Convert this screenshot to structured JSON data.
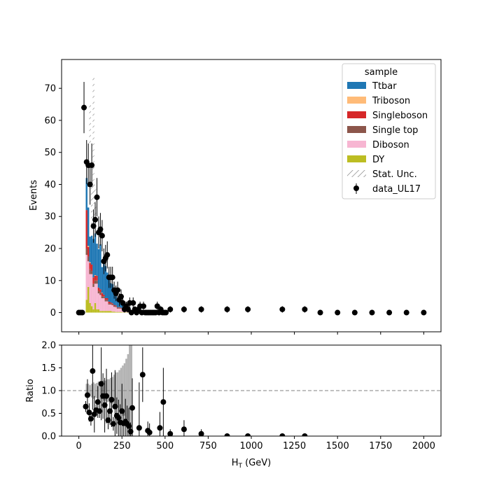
{
  "chart_data": [
    {
      "type": "bar",
      "panel": "main",
      "stacked": true,
      "ylabel": "Events",
      "xlim": [
        -100,
        2100
      ],
      "ylim": [
        -6,
        79
      ],
      "yticks": [
        0,
        10,
        20,
        30,
        40,
        50,
        60,
        70
      ],
      "bin_width": 10,
      "x": [
        40,
        50,
        60,
        70,
        80,
        90,
        100,
        110,
        120,
        130,
        140,
        150,
        160,
        170,
        180,
        190,
        200,
        210,
        220,
        230,
        240,
        250,
        260,
        270,
        280,
        290,
        300,
        310
      ],
      "series": [
        {
          "name": "DY",
          "color": "#bcbd22",
          "values": [
            4,
            8,
            3,
            2,
            1,
            3,
            1,
            1,
            0.5,
            0.5,
            0.5,
            0.5,
            0.5,
            0.5,
            0.5,
            0.3,
            0.3,
            0.2,
            0.2,
            0.2,
            0.2,
            0.1,
            0.1,
            0.1,
            0.1,
            0,
            0,
            0
          ]
        },
        {
          "name": "Diboson",
          "color": "#f7b6d2",
          "values": [
            14,
            8,
            9,
            10,
            7,
            6,
            8,
            5,
            5,
            4,
            4,
            3,
            3,
            2,
            2,
            2,
            1.5,
            1.5,
            1,
            1,
            1,
            1,
            0.5,
            0.5,
            0.5,
            0.5,
            0.3,
            0.3
          ]
        },
        {
          "name": "Single top",
          "color": "#8c564b",
          "values": [
            2,
            1.5,
            1.5,
            1,
            1,
            1,
            1,
            0.8,
            0.8,
            0.6,
            0.6,
            0.5,
            0.5,
            0.4,
            0.4,
            0.3,
            0.3,
            0.3,
            0.2,
            0.2,
            0.2,
            0.1,
            0.1,
            0.1,
            0.1,
            0.1,
            0,
            0
          ]
        },
        {
          "name": "Singleboson",
          "color": "#d62728",
          "values": [
            12,
            3,
            2,
            2,
            2,
            1.5,
            1.5,
            1,
            1,
            1,
            0.5,
            0.5,
            0.5,
            0.5,
            0.3,
            0.3,
            0.3,
            0.2,
            0.2,
            0.2,
            0.1,
            0.1,
            0.1,
            0.1,
            0,
            0,
            0,
            0
          ]
        },
        {
          "name": "Triboson",
          "color": "#ffbb78",
          "values": [
            0,
            0.3,
            0.2,
            0,
            0,
            0.2,
            0,
            0,
            0,
            0.1,
            0,
            0,
            0,
            0,
            0,
            0,
            0,
            0,
            0,
            0,
            0,
            0,
            0,
            0,
            0,
            0,
            0,
            0
          ]
        },
        {
          "name": "Ttbar",
          "color": "#1f77b4",
          "values": [
            10,
            12,
            8,
            9,
            12,
            13,
            10,
            12,
            14,
            8,
            11,
            10,
            8,
            7,
            6,
            6,
            4,
            4,
            3,
            3,
            2,
            2,
            1.5,
            1.5,
            1,
            1,
            0.5,
            0.5
          ]
        }
      ],
      "stat_unc": {
        "name": "Stat. Unc.",
        "x": [
          60,
          70,
          80,
          90
        ],
        "low": [
          52,
          26,
          34,
          26
        ],
        "high": [
          65,
          40,
          74,
          40
        ]
      },
      "data": {
        "name": "data_UL17",
        "x": [
          0,
          10,
          20,
          30,
          40,
          50,
          60,
          70,
          80,
          90,
          100,
          110,
          120,
          130,
          140,
          150,
          160,
          170,
          180,
          190,
          200,
          210,
          220,
          230,
          240,
          250,
          260,
          270,
          280,
          290,
          300,
          310,
          320,
          330,
          340,
          350,
          360,
          370,
          380,
          390,
          400,
          410,
          420,
          430,
          440,
          450,
          460,
          470,
          480,
          490,
          500,
          530,
          610,
          710,
          860,
          980,
          1180,
          1310,
          1400,
          1500,
          1600,
          1700,
          1800,
          1900,
          2000
        ],
        "y": [
          0,
          0,
          0,
          64,
          47,
          46,
          40,
          46,
          27,
          29,
          36,
          25,
          26,
          24,
          16,
          17,
          18,
          11,
          11,
          11,
          7,
          6,
          7,
          4,
          5,
          3,
          1,
          2,
          1,
          3,
          0,
          3,
          1,
          0,
          1,
          2,
          0,
          2,
          0,
          0,
          0,
          0,
          0,
          0,
          0,
          2,
          0,
          1,
          0,
          0,
          0,
          1,
          1,
          1,
          1,
          1,
          1,
          1,
          0,
          0,
          0,
          0,
          0,
          0,
          0
        ]
      },
      "legend": {
        "title": "sample",
        "location": "upper right",
        "entries": [
          "Ttbar",
          "Triboson",
          "Singleboson",
          "Single top",
          "Diboson",
          "DY",
          "Stat. Unc.",
          "data_UL17"
        ]
      }
    },
    {
      "type": "scatter",
      "panel": "ratio",
      "xlabel": "H$_T$ (GeV)",
      "xlabel_main": "H",
      "xlabel_sub": "T",
      "xlabel_suffix": " (GeV)",
      "ylabel": "Ratio",
      "xlim": [
        -100,
        2100
      ],
      "ylim": [
        0,
        2
      ],
      "xticks": [
        0,
        250,
        500,
        750,
        1000,
        1250,
        1500,
        1750,
        2000
      ],
      "yticks": [
        0.0,
        0.5,
        1.0,
        1.5,
        2.0
      ],
      "ytick_labels": [
        "0.0",
        "0.5",
        "1.0",
        "1.5",
        "2.0"
      ],
      "reference_line": 1.0,
      "unc_band": {
        "x": [
          40,
          50,
          60,
          70,
          80,
          90,
          100,
          110,
          120,
          130,
          140,
          150,
          160,
          170,
          180,
          190,
          200,
          210,
          220,
          230,
          240,
          250,
          260,
          270,
          280,
          290,
          300
        ],
        "low": [
          0.85,
          0.85,
          0.88,
          0.85,
          0.82,
          0.85,
          0.83,
          0.8,
          0.8,
          0.82,
          0.78,
          0.78,
          0.75,
          0.75,
          0.72,
          0.7,
          0.65,
          0.6,
          0.62,
          0.55,
          0.5,
          0.45,
          0.45,
          0.3,
          0.35,
          0,
          0
        ],
        "high": [
          1.15,
          1.15,
          1.12,
          1.15,
          1.18,
          1.15,
          1.17,
          1.2,
          1.2,
          1.18,
          1.22,
          1.22,
          1.25,
          1.25,
          1.28,
          1.3,
          1.35,
          1.4,
          1.4,
          1.45,
          1.5,
          1.55,
          1.6,
          1.7,
          1.8,
          2.0,
          2.0
        ]
      },
      "points": {
        "x": [
          40,
          50,
          60,
          70,
          80,
          90,
          100,
          110,
          120,
          130,
          140,
          150,
          160,
          170,
          180,
          190,
          200,
          210,
          220,
          230,
          240,
          250,
          260,
          270,
          280,
          290,
          300,
          310,
          350,
          370,
          400,
          410,
          470,
          490,
          530,
          610,
          710,
          860,
          980,
          1180,
          1310
        ],
        "y": [
          0.65,
          0.9,
          0.52,
          0.38,
          1.43,
          0.48,
          0.57,
          0.75,
          0.55,
          1.15,
          0.88,
          0.68,
          0.88,
          0.35,
          0.55,
          0.8,
          0.27,
          0.65,
          0.45,
          0.4,
          0.3,
          0.55,
          0.28,
          0.32,
          0.27,
          0.22,
          0.1,
          0.62,
          0.18,
          1.35,
          0.12,
          0.08,
          0.18,
          0.75,
          0.05,
          0.15,
          0.05,
          0.0,
          0.0,
          0.0,
          0.0
        ],
        "err": [
          0.12,
          0.35,
          0.2,
          0.15,
          0.85,
          0.4,
          0.12,
          0.35,
          0.15,
          0.8,
          0.5,
          0.6,
          0.6,
          0.2,
          0.3,
          0.6,
          0.15,
          0.8,
          0.4,
          0.4,
          0.4,
          0.6,
          0.3,
          0.5,
          0.4,
          0.4,
          0.2,
          0.65,
          1.0,
          0.6,
          0.2,
          0.2,
          0.35,
          0.75,
          0.1,
          0.2,
          0.1,
          0,
          0,
          0,
          0
        ]
      }
    }
  ]
}
